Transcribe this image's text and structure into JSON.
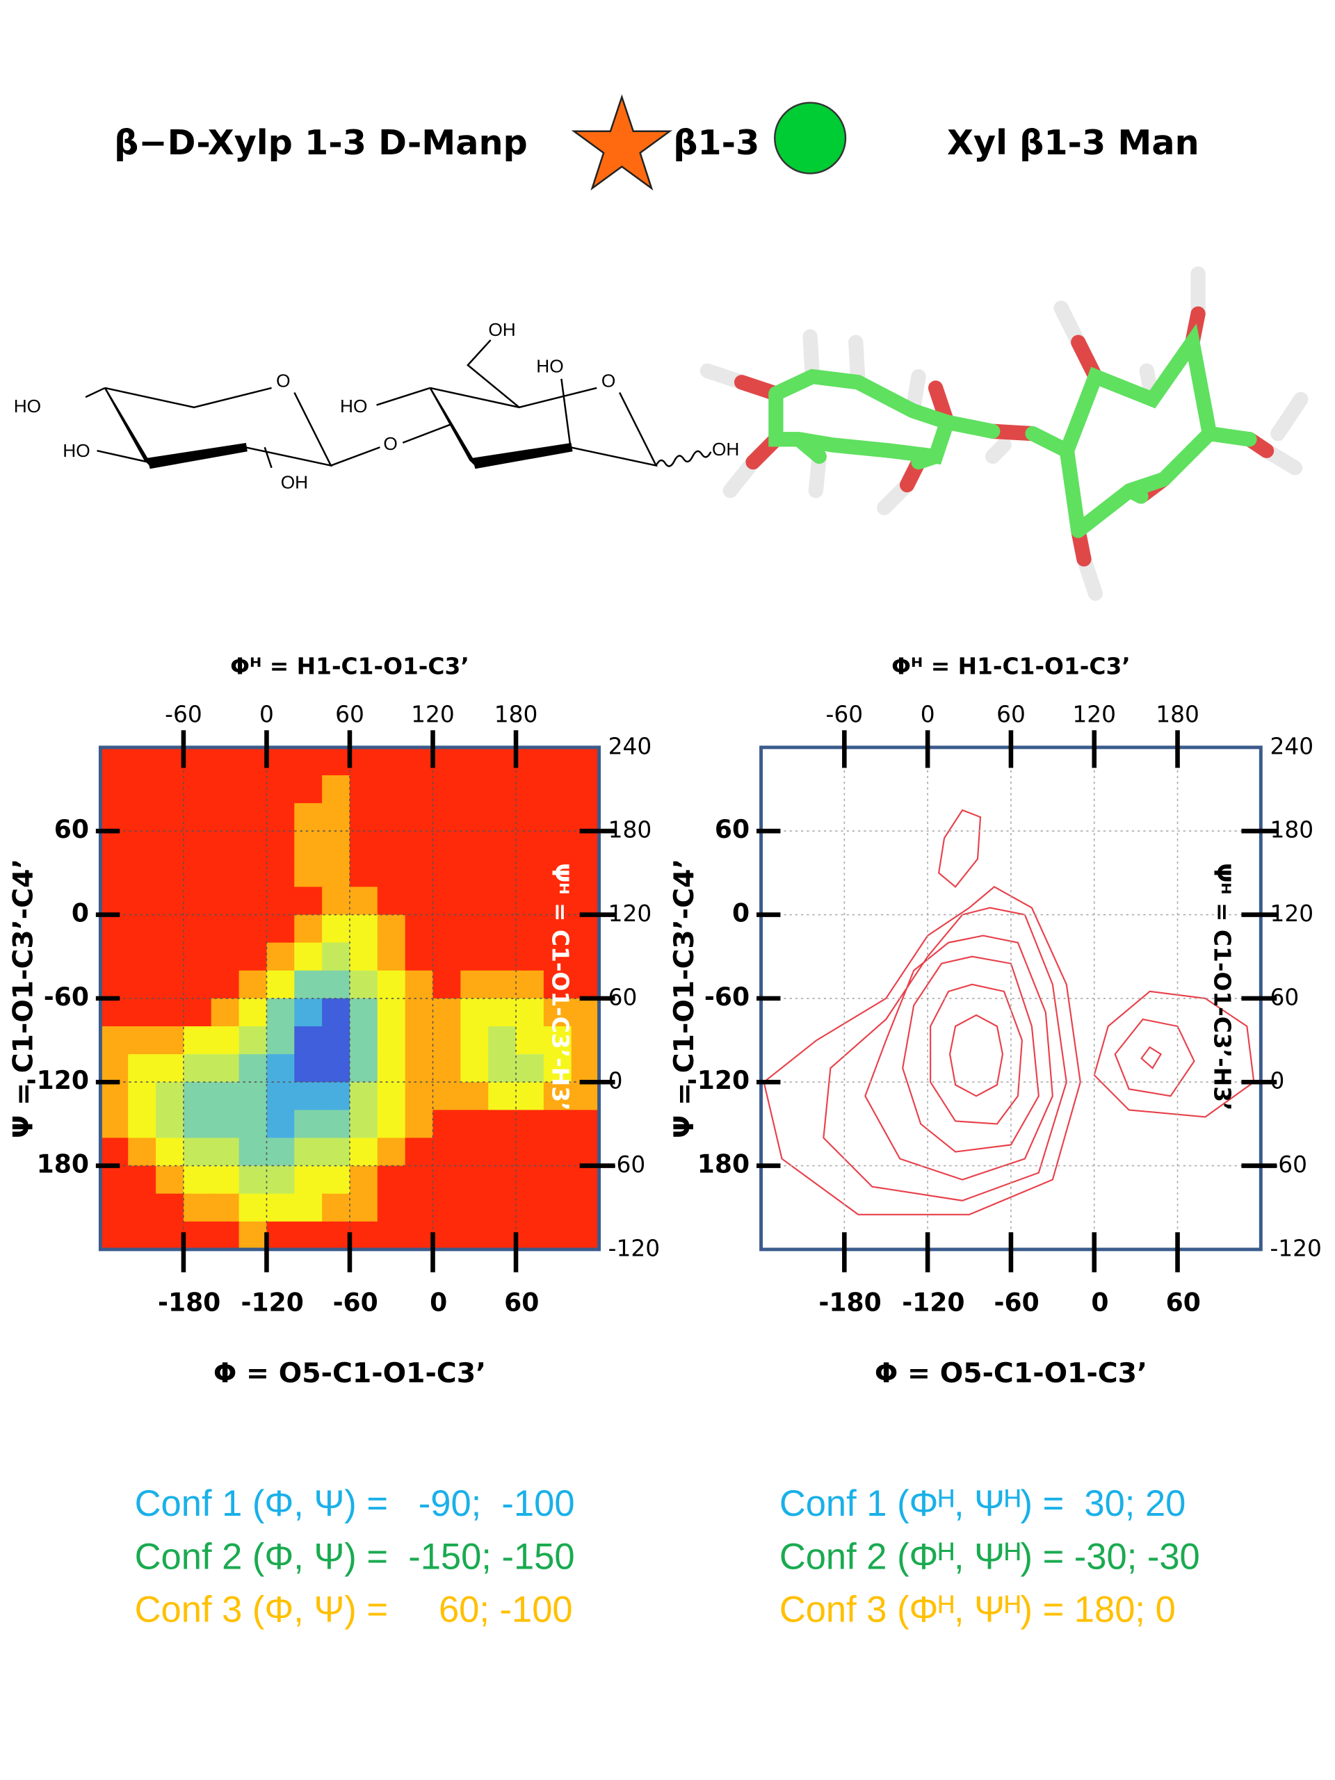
{
  "header": {
    "left": "β−D-Xylp 1-3 D-Manp",
    "linkage": "β1-3",
    "right": "Xyl β1-3 Man"
  },
  "structure": {
    "labels": [
      "HO",
      "HO",
      "O",
      "OH",
      "O",
      "HO",
      "OH",
      "HO",
      "O",
      "OH"
    ]
  },
  "chart_data": [
    {
      "type": "heatmap",
      "xlabel": "Φ = O5-C1-O1-C3’",
      "x2label": "Φᴴ = H1-C1-O1-C3’",
      "ylabel": "Ψ = C1-O1-C3’-C4’",
      "y2label": "Ψᴴ = C1-O1-C3’-H3’",
      "y2label_color": "#ffffff",
      "xlim": [
        -240,
        120
      ],
      "xticks": [
        -180,
        -120,
        -60,
        0,
        60
      ],
      "x2lim": [
        -120,
        240
      ],
      "x2ticks": [
        -60,
        0,
        60,
        120,
        180
      ],
      "ylim": [
        -240,
        120
      ],
      "yticks": [
        {
          "value": -180,
          "label": "180"
        },
        -120,
        -60,
        0,
        60
      ],
      "y2lim": [
        -120,
        240
      ],
      "y2ticks": [
        -120,
        -60,
        0,
        60,
        120,
        180,
        240
      ],
      "grid": true,
      "grid_color": "#555555",
      "colormap": [
        "#3f5fdc",
        "#48aee0",
        "#7fd3a8",
        "#c4ea5c",
        "#f6f61c",
        "#ffaa12",
        "#ff2a0a"
      ],
      "x": [
        -230,
        -210,
        -190,
        -170,
        -150,
        -130,
        -110,
        -90,
        -70,
        -50,
        -30,
        -10,
        10,
        30,
        50,
        70,
        90,
        110
      ],
      "y": [
        110,
        90,
        70,
        50,
        30,
        10,
        -10,
        -30,
        -50,
        -70,
        -90,
        -110,
        -130,
        -150,
        -170,
        -190,
        -210,
        -230
      ],
      "values": [
        [
          6,
          6,
          6,
          6,
          6,
          6,
          6,
          6,
          6,
          6,
          6,
          6,
          6,
          6,
          6,
          6,
          6,
          6
        ],
        [
          6,
          6,
          6,
          6,
          6,
          6,
          6,
          6,
          5,
          6,
          6,
          6,
          6,
          6,
          6,
          6,
          6,
          6
        ],
        [
          6,
          6,
          6,
          6,
          6,
          6,
          6,
          5,
          5,
          6,
          6,
          6,
          6,
          6,
          6,
          6,
          6,
          6
        ],
        [
          6,
          6,
          6,
          6,
          6,
          6,
          6,
          5,
          5,
          6,
          6,
          6,
          6,
          6,
          6,
          6,
          6,
          6
        ],
        [
          6,
          6,
          6,
          6,
          6,
          6,
          6,
          5,
          5,
          6,
          6,
          6,
          6,
          6,
          6,
          6,
          6,
          6
        ],
        [
          6,
          6,
          6,
          6,
          6,
          6,
          6,
          6,
          5,
          5,
          6,
          6,
          6,
          6,
          6,
          6,
          6,
          6
        ],
        [
          6,
          6,
          6,
          6,
          6,
          6,
          6,
          5,
          4,
          4,
          5,
          6,
          6,
          6,
          6,
          6,
          6,
          6
        ],
        [
          6,
          6,
          6,
          6,
          6,
          6,
          5,
          4,
          3,
          4,
          5,
          6,
          6,
          6,
          6,
          6,
          6,
          6
        ],
        [
          6,
          6,
          6,
          6,
          6,
          5,
          4,
          2,
          2,
          3,
          4,
          5,
          6,
          5,
          5,
          5,
          6,
          6
        ],
        [
          6,
          6,
          6,
          6,
          5,
          4,
          2,
          1,
          0,
          2,
          4,
          5,
          5,
          4,
          4,
          4,
          5,
          5
        ],
        [
          5,
          5,
          5,
          4,
          4,
          3,
          2,
          0,
          0,
          2,
          4,
          5,
          5,
          4,
          3,
          4,
          4,
          5
        ],
        [
          5,
          4,
          4,
          3,
          3,
          2,
          1,
          0,
          0,
          2,
          4,
          5,
          5,
          4,
          3,
          3,
          4,
          5
        ],
        [
          5,
          4,
          3,
          2,
          2,
          2,
          1,
          1,
          1,
          3,
          4,
          5,
          5,
          5,
          4,
          4,
          5,
          5
        ],
        [
          5,
          4,
          3,
          2,
          2,
          2,
          1,
          2,
          2,
          3,
          4,
          5,
          6,
          6,
          6,
          6,
          6,
          6
        ],
        [
          6,
          5,
          4,
          3,
          3,
          2,
          2,
          3,
          3,
          4,
          5,
          6,
          6,
          6,
          6,
          6,
          6,
          6
        ],
        [
          6,
          6,
          5,
          4,
          4,
          3,
          3,
          4,
          4,
          5,
          6,
          6,
          6,
          6,
          6,
          6,
          6,
          6
        ],
        [
          6,
          6,
          6,
          5,
          5,
          4,
          4,
          4,
          5,
          5,
          6,
          6,
          6,
          6,
          6,
          6,
          6,
          6
        ],
        [
          6,
          6,
          6,
          6,
          6,
          5,
          6,
          6,
          6,
          6,
          6,
          6,
          6,
          6,
          6,
          6,
          6,
          6
        ]
      ]
    },
    {
      "type": "contour",
      "xlabel": "Φ = O5-C1-O1-C3’",
      "x2label": "Φᴴ = H1-C1-O1-C3’",
      "ylabel": "Ψ = C1-O1-C3’-C4’",
      "y2label": "Ψᴴ = C1-O1-C3’-H3’",
      "y2label_color": "#000000",
      "xlim": [
        -240,
        120
      ],
      "xticks": [
        -180,
        -120,
        -60,
        0,
        60
      ],
      "x2lim": [
        -120,
        240
      ],
      "x2ticks": [
        -60,
        0,
        60,
        120,
        180
      ],
      "ylim": [
        -240,
        120
      ],
      "yticks": [
        {
          "value": -180,
          "label": "180"
        },
        -120,
        -60,
        0,
        60
      ],
      "y2lim": [
        -120,
        240
      ],
      "y2ticks": [
        -120,
        -60,
        0,
        60,
        120,
        180,
        240
      ],
      "grid": true,
      "grid_color": "#aaaaaa",
      "color": "#e8404a",
      "contours": [
        {
          "x": [
            -85,
            -70,
            -66,
            -70,
            -85,
            -100,
            -104,
            -100
          ],
          "y": [
            -72,
            -80,
            -100,
            -122,
            -130,
            -122,
            -100,
            -80
          ]
        },
        {
          "x": [
            -88,
            -65,
            -52,
            -55,
            -70,
            -100,
            -118,
            -118,
            -105
          ],
          "y": [
            -50,
            -55,
            -90,
            -130,
            -150,
            -148,
            -120,
            -80,
            -55
          ]
        },
        {
          "x": [
            -88,
            -60,
            -45,
            -40,
            -60,
            -100,
            -125,
            -138,
            -130,
            -110
          ],
          "y": [
            -30,
            -35,
            -80,
            -130,
            -165,
            -170,
            -150,
            -110,
            -65,
            -35
          ]
        },
        {
          "x": [
            -80,
            -55,
            -35,
            -30,
            -50,
            -95,
            -140,
            -165,
            -150,
            -130,
            -105
          ],
          "y": [
            -15,
            -20,
            -70,
            -130,
            -175,
            -190,
            -175,
            -130,
            -90,
            -40,
            -20
          ]
        },
        {
          "x": [
            -75,
            -50,
            -30,
            -20,
            -40,
            -95,
            -160,
            -195,
            -190,
            -150,
            -120,
            -95
          ],
          "y": [
            5,
            0,
            -50,
            -120,
            -185,
            -205,
            -195,
            -160,
            -110,
            -75,
            -30,
            0
          ]
        },
        {
          "x": [
            -72,
            -45,
            -20,
            -10,
            -30,
            -90,
            -170,
            -225,
            -238,
            -200,
            -150,
            -120,
            -90
          ],
          "y": [
            20,
            5,
            -50,
            -120,
            -190,
            -215,
            -215,
            -175,
            -120,
            -90,
            -60,
            -15,
            5
          ]
        },
        {
          "x": [
            -95,
            -82,
            -84,
            -100,
            -112,
            -108
          ],
          "y": [
            75,
            70,
            40,
            20,
            30,
            55
          ]
        },
        {
          "x": [
            40,
            48,
            42,
            34
          ],
          "y": [
            -95,
            -100,
            -110,
            -103
          ]
        },
        {
          "x": [
            35,
            60,
            72,
            55,
            25,
            15
          ],
          "y": [
            -75,
            -80,
            -105,
            -130,
            -125,
            -100
          ]
        },
        {
          "x": [
            40,
            80,
            110,
            115,
            80,
            25,
            0,
            10
          ],
          "y": [
            -55,
            -60,
            -80,
            -120,
            -145,
            -140,
            -115,
            -80
          ]
        }
      ]
    }
  ],
  "conformations": {
    "left": [
      {
        "text": "Conf 1 (Φ, Ψ) =   -90;  -100",
        "color": "#1ab0e8"
      },
      {
        "text": "Conf 2 (Φ, Ψ) =  -150; -150",
        "color": "#1aaa50"
      },
      {
        "text": "Conf 3 (Φ, Ψ) =     60; -100",
        "color": "#ffc000"
      }
    ],
    "right": [
      {
        "text": "Conf 1 (Φᴴ, Ψᴴ) =  30; 20",
        "color": "#1ab0e8"
      },
      {
        "text": "Conf 2 (Φᴴ, Ψᴴ) = -30; -30",
        "color": "#1aaa50"
      },
      {
        "text": "Conf 3 (Φᴴ, Ψᴴ) = 180; 0",
        "color": "#ffc000"
      }
    ]
  }
}
